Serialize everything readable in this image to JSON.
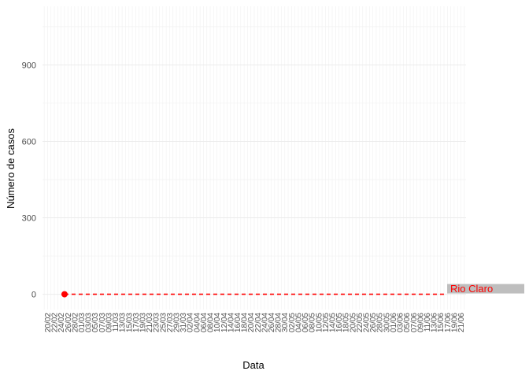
{
  "colors": {
    "series": "#ff0000",
    "label_bg": "#bebebe",
    "grid": "#ebebeb",
    "panel_bg": "#ffffff"
  },
  "chart_data": {
    "type": "line",
    "title": "",
    "xlabel": "Data",
    "ylabel": "Número de casos",
    "ylim": [
      -60,
      1130
    ],
    "yticks": [
      0,
      300,
      600,
      900
    ],
    "grid": true,
    "x_ticks": [
      "20/02",
      "22/02",
      "24/02",
      "26/02",
      "28/02",
      "01/03",
      "03/03",
      "05/03",
      "07/03",
      "09/03",
      "11/03",
      "13/03",
      "15/03",
      "17/03",
      "19/03",
      "21/03",
      "23/03",
      "25/03",
      "27/03",
      "29/03",
      "31/03",
      "02/04",
      "04/04",
      "06/04",
      "08/04",
      "10/04",
      "12/04",
      "14/04",
      "16/04",
      "18/04",
      "20/04",
      "22/04",
      "24/04",
      "26/04",
      "28/04",
      "30/04",
      "02/05",
      "04/05",
      "06/05",
      "08/05",
      "10/05",
      "12/05",
      "14/05",
      "16/05",
      "18/05",
      "20/05",
      "22/05",
      "24/05",
      "26/05",
      "28/05",
      "30/05",
      "01/06",
      "03/06",
      "05/06",
      "07/06",
      "09/06",
      "11/06",
      "13/06",
      "15/06",
      "17/06",
      "19/06",
      "21/06"
    ],
    "series": [
      {
        "name": "Rio Claro",
        "points": [
          {
            "x": "25/02",
            "y": 0
          }
        ],
        "reference_line": {
          "y": 0,
          "from": "25/02",
          "to": "16/06",
          "style": "dashed"
        }
      }
    ],
    "annotations": [
      {
        "text": "Rio Claro",
        "x": "16/06",
        "y": 0
      }
    ]
  }
}
